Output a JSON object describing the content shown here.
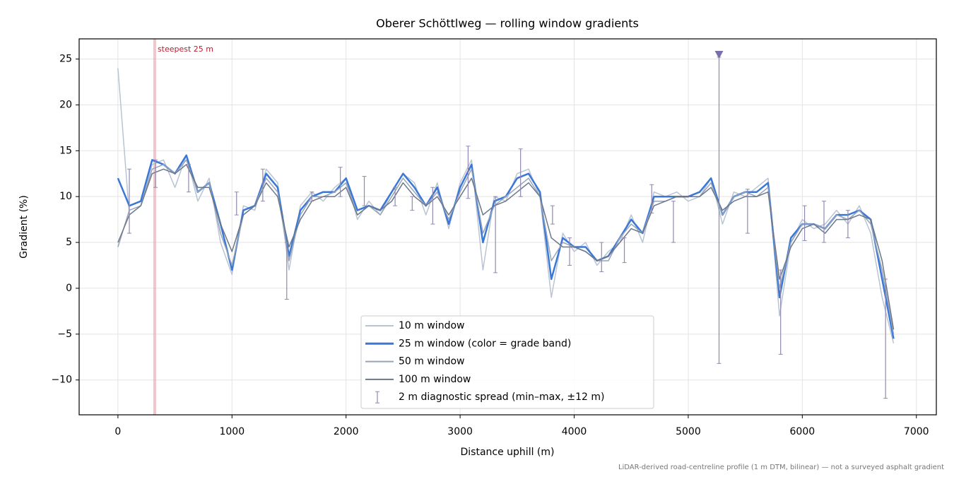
{
  "chart_data": {
    "type": "line",
    "title": "Oberer Schöttlweg — rolling window gradients",
    "x_label": "Distance uphill (m)",
    "y_label": "Gradient (%)",
    "footnote": "LiDAR-derived road-centreline profile (1 m DTM, bilinear) — not a surveyed asphalt gradient",
    "annotation": {
      "text": "steepest 25 m",
      "x": [
        310,
        335
      ],
      "color": "#e8a0a8",
      "text_color": "#b22234"
    },
    "peak_marker": {
      "x": 5270,
      "y": 25.5,
      "color": "#7b6fa8"
    },
    "xlim": [
      -340,
      7175
    ],
    "ylim": [
      -13.8,
      27.2
    ],
    "xticks": [
      0,
      1000,
      2000,
      3000,
      4000,
      5000,
      6000,
      7000
    ],
    "yticks": [
      {
        "value": -10,
        "label": "−10"
      },
      {
        "value": -5,
        "label": "−5"
      },
      0,
      5,
      10,
      15,
      20,
      25
    ],
    "grid": true,
    "legend": "lower center",
    "x": [
      0,
      100,
      200,
      300,
      400,
      500,
      600,
      700,
      800,
      900,
      1000,
      1100,
      1200,
      1300,
      1400,
      1500,
      1600,
      1700,
      1800,
      1900,
      2000,
      2100,
      2200,
      2300,
      2400,
      2500,
      2600,
      2700,
      2800,
      2900,
      3000,
      3100,
      3200,
      3300,
      3400,
      3500,
      3600,
      3700,
      3800,
      3900,
      4000,
      4100,
      4200,
      4300,
      4400,
      4500,
      4600,
      4700,
      4800,
      4900,
      5000,
      5100,
      5200,
      5300,
      5400,
      5500,
      5600,
      5700,
      5800,
      5900,
      6000,
      6100,
      6200,
      6300,
      6400,
      6500,
      6600,
      6700,
      6800
    ],
    "series": [
      {
        "name": "10 m window",
        "color": "#b9c4d3",
        "width": 1.5,
        "values": [
          24,
          8,
          9,
          13.5,
          14,
          11,
          14.5,
          9.5,
          12,
          5,
          1.5,
          9,
          8.5,
          13,
          11.5,
          2,
          9,
          10.5,
          9.5,
          11,
          12,
          7.5,
          9.5,
          8,
          10.5,
          12.5,
          11.5,
          8,
          11.5,
          6.5,
          11.5,
          14,
          2,
          10,
          9.5,
          12.5,
          13,
          10,
          -1,
          6,
          4,
          5,
          2.5,
          4,
          5,
          8,
          5,
          10.5,
          10,
          10.5,
          9.5,
          10,
          12,
          7,
          10.5,
          10,
          11,
          12,
          -3,
          5,
          7.5,
          6.5,
          7,
          8.5,
          7,
          9,
          6,
          -1,
          -6
        ]
      },
      {
        "name": "25 m window (color = grade band)",
        "color": "#3a78d8",
        "width": 2.5,
        "values": [
          12,
          9,
          9.5,
          14,
          13.5,
          12.5,
          14.5,
          10.5,
          11.5,
          7,
          2,
          8.5,
          9,
          12.5,
          11,
          3.5,
          8.5,
          10,
          10.5,
          10.5,
          12,
          8.5,
          9,
          8.5,
          10.5,
          12.5,
          11,
          9,
          11,
          7,
          11,
          13.5,
          5,
          9.5,
          10,
          12,
          12.5,
          10.5,
          1,
          5.5,
          4.5,
          4.5,
          3,
          3.5,
          5.5,
          7.5,
          6,
          10,
          10,
          10,
          10,
          10.5,
          12,
          8,
          10,
          10.5,
          10.5,
          11.5,
          -1,
          5.5,
          7,
          7,
          6.5,
          8,
          8,
          8.5,
          7.5,
          1,
          -5.5
        ]
      },
      {
        "name": "50 m window",
        "color": "#98a4b7",
        "width": 1.5,
        "values": [
          4.5,
          8.5,
          9,
          13,
          13.5,
          12.5,
          14,
          10.5,
          11.5,
          6,
          2.5,
          8,
          9,
          12,
          10.5,
          3,
          8,
          10,
          10,
          10.5,
          11.5,
          8,
          9,
          8,
          10,
          12,
          10.5,
          9,
          10.5,
          7.5,
          10.5,
          13,
          6,
          9,
          10,
          11,
          12,
          10,
          3,
          5,
          4.5,
          4,
          3,
          3,
          5.5,
          7,
          6,
          9.5,
          9.5,
          10,
          10,
          10,
          11.5,
          8,
          10,
          10.5,
          10,
          11,
          0,
          5,
          7,
          7,
          6.5,
          8,
          7.5,
          8.5,
          7,
          2,
          -5
        ]
      },
      {
        "name": "100 m window",
        "color": "#6c7889",
        "width": 1.5,
        "values": [
          5,
          8,
          9,
          12.5,
          13,
          12.5,
          13.5,
          11,
          11,
          7,
          4,
          8,
          9,
          11.5,
          10,
          4.5,
          7.5,
          9.5,
          10,
          10,
          11,
          8,
          9,
          8.5,
          9.5,
          11.5,
          10,
          9,
          10,
          8,
          10,
          12,
          8,
          9,
          9.5,
          10.5,
          11.5,
          10,
          5.5,
          4.5,
          4.5,
          4,
          3,
          3.5,
          5,
          6.5,
          6,
          9,
          9.5,
          10,
          10,
          10,
          11,
          8.5,
          9.5,
          10,
          10,
          10.5,
          1,
          4.5,
          6.5,
          7,
          6,
          7.5,
          7.5,
          8,
          7.5,
          3,
          -4.5
        ]
      }
    ],
    "spread": {
      "name": "2 m diagnostic spread (min–max, ±12 m)",
      "color": "#9088b2",
      "x": [
        100,
        330,
        620,
        1040,
        1270,
        1480,
        1700,
        1950,
        2160,
        2430,
        2580,
        2760,
        3070,
        3310,
        3530,
        3810,
        3960,
        4240,
        4440,
        4680,
        4870,
        5270,
        5520,
        5810,
        6020,
        6190,
        6400,
        6730
      ],
      "low": [
        6,
        11,
        10.5,
        8,
        9.5,
        -1.2,
        9.5,
        10,
        9,
        9,
        8.5,
        7,
        9.8,
        1.7,
        10,
        7,
        2.5,
        1.8,
        2.8,
        8.2,
        5,
        -8.2,
        6,
        -7.2,
        5.2,
        5,
        5.5,
        -12
      ],
      "high": [
        13,
        14,
        13.5,
        10.5,
        13,
        5,
        10.5,
        13.2,
        12.2,
        11,
        10,
        11,
        15.5,
        10,
        15.2,
        9,
        5.5,
        5,
        5.5,
        11.3,
        9.5,
        25.2,
        10.8,
        2,
        9,
        9.5,
        8.5,
        1
      ]
    }
  }
}
